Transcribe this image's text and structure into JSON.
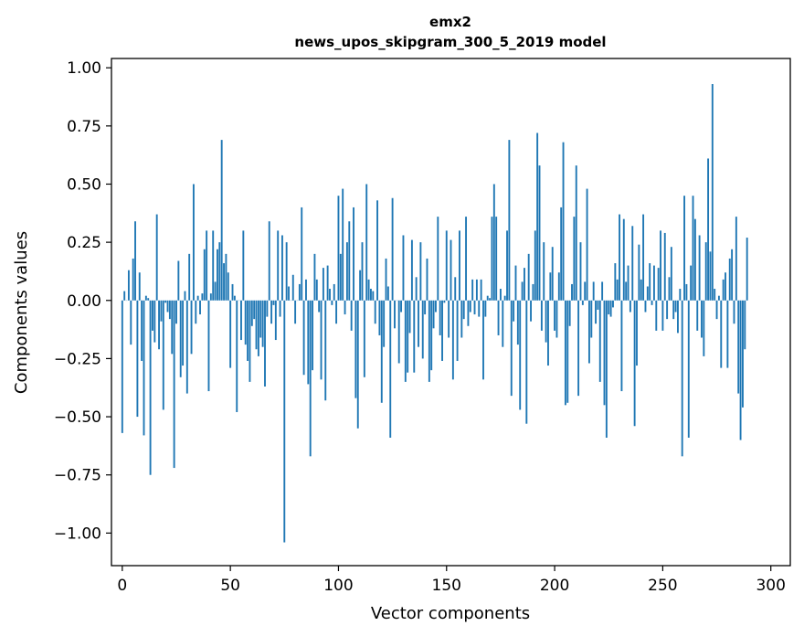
{
  "chart_data": {
    "type": "bar",
    "title_line1": "emx2",
    "title_line2": "news_upos_skipgram_300_5_2019 model",
    "xlabel": "Vector components",
    "ylabel": "Components values",
    "xlim": [
      -5,
      309
    ],
    "ylim": [
      -1.14,
      1.04
    ],
    "xticks": [
      0,
      50,
      100,
      150,
      200,
      250,
      300
    ],
    "xtick_labels": [
      "0",
      "50",
      "100",
      "150",
      "200",
      "250",
      "300"
    ],
    "yticks": [
      1.0,
      0.75,
      0.5,
      0.25,
      0.0,
      -0.25,
      -0.5,
      -0.75,
      -1.0
    ],
    "ytick_labels": [
      "1.00",
      "0.75",
      "0.50",
      "0.25",
      "0.00",
      "−0.25",
      "−0.50",
      "−0.75",
      "−1.00"
    ],
    "color": "#1f77b4",
    "values": [
      -0.57,
      0.04,
      0.0,
      0.13,
      -0.19,
      0.18,
      0.34,
      -0.5,
      0.12,
      -0.26,
      -0.58,
      0.02,
      0.01,
      -0.75,
      -0.13,
      -0.18,
      0.37,
      -0.21,
      -0.09,
      -0.47,
      -0.01,
      -0.05,
      -0.08,
      -0.23,
      -0.72,
      -0.1,
      0.17,
      -0.33,
      -0.28,
      0.04,
      -0.4,
      0.2,
      -0.23,
      0.5,
      -0.1,
      0.02,
      -0.06,
      0.03,
      0.22,
      0.3,
      -0.39,
      0.03,
      0.3,
      0.08,
      0.22,
      0.25,
      0.69,
      0.16,
      0.2,
      0.12,
      -0.29,
      0.07,
      0.02,
      -0.48,
      0.0,
      -0.17,
      0.3,
      -0.19,
      -0.26,
      -0.35,
      -0.11,
      -0.08,
      -0.21,
      -0.24,
      -0.16,
      -0.2,
      -0.37,
      -0.07,
      0.34,
      -0.1,
      -0.02,
      -0.17,
      0.3,
      -0.07,
      0.28,
      -1.04,
      0.25,
      0.06,
      0.0,
      0.11,
      -0.1,
      0.0,
      0.07,
      0.4,
      -0.32,
      0.09,
      -0.36,
      -0.67,
      -0.3,
      0.2,
      0.09,
      -0.05,
      -0.34,
      0.14,
      -0.43,
      0.15,
      0.05,
      -0.02,
      0.07,
      -0.1,
      0.45,
      0.2,
      0.48,
      -0.06,
      0.25,
      0.34,
      -0.13,
      0.4,
      -0.42,
      -0.55,
      0.13,
      0.25,
      -0.33,
      0.5,
      0.09,
      0.05,
      0.04,
      -0.1,
      0.43,
      -0.15,
      -0.44,
      -0.2,
      0.18,
      0.06,
      -0.59,
      0.44,
      -0.12,
      0.0,
      -0.27,
      -0.05,
      0.28,
      -0.35,
      -0.31,
      -0.14,
      0.26,
      -0.31,
      0.1,
      -0.2,
      0.25,
      -0.25,
      -0.06,
      0.18,
      -0.35,
      -0.3,
      -0.12,
      -0.05,
      0.36,
      -0.15,
      -0.26,
      -0.01,
      0.3,
      -0.16,
      0.26,
      -0.34,
      0.1,
      -0.26,
      0.3,
      -0.16,
      -0.08,
      0.36,
      -0.11,
      -0.05,
      0.09,
      -0.06,
      0.09,
      -0.07,
      0.09,
      -0.34,
      -0.07,
      0.02,
      0.01,
      0.36,
      0.5,
      0.36,
      -0.15,
      0.05,
      -0.2,
      0.02,
      0.3,
      0.69,
      -0.41,
      -0.09,
      0.15,
      -0.19,
      -0.47,
      0.08,
      0.14,
      -0.53,
      0.2,
      -0.09,
      0.07,
      0.3,
      0.72,
      0.58,
      -0.13,
      0.25,
      -0.18,
      -0.28,
      0.12,
      0.23,
      -0.13,
      -0.16,
      0.12,
      0.4,
      0.68,
      -0.45,
      -0.44,
      -0.11,
      0.07,
      0.36,
      0.58,
      -0.41,
      0.25,
      -0.02,
      0.08,
      0.48,
      -0.27,
      -0.16,
      0.08,
      -0.1,
      -0.04,
      -0.35,
      0.08,
      -0.45,
      -0.59,
      -0.06,
      -0.07,
      -0.03,
      0.16,
      0.09,
      0.37,
      -0.39,
      0.35,
      0.08,
      0.15,
      -0.05,
      0.32,
      -0.54,
      -0.28,
      0.24,
      0.09,
      0.37,
      -0.05,
      0.06,
      0.16,
      -0.02,
      0.15,
      -0.13,
      0.14,
      0.3,
      -0.13,
      0.29,
      -0.08,
      0.1,
      0.23,
      -0.08,
      -0.05,
      -0.14,
      0.05,
      -0.67,
      0.45,
      0.07,
      -0.59,
      0.15,
      0.45,
      0.35,
      -0.13,
      0.28,
      -0.16,
      -0.24,
      0.25,
      0.61,
      0.21,
      0.93,
      0.05,
      -0.08,
      0.02,
      -0.29,
      0.09,
      0.12,
      -0.29,
      0.18,
      0.22,
      -0.1,
      0.36,
      -0.4,
      -0.6,
      -0.46,
      -0.21,
      0.27
    ]
  }
}
